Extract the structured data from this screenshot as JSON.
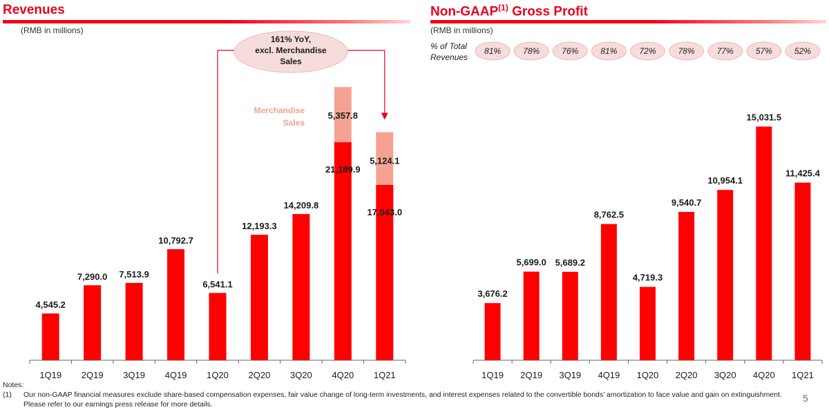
{
  "colors": {
    "bar": "#ff0000",
    "merch": "#f4a392",
    "title": "#e8001c",
    "callout_fill": "#f7dcdc",
    "callout_arrow": "#e8001c"
  },
  "left": {
    "title": "Revenues",
    "unit": "(RMB in millions)",
    "callout": [
      "161% YoY,",
      "excl. Merchandise",
      "Sales"
    ],
    "merch_label": [
      "Merchandise",
      "Sales"
    ]
  },
  "right": {
    "title": "Non-GAAP",
    "title_sup": "(1)",
    "title_suffix": " Gross Profit",
    "unit": "(RMB in millions)",
    "pct_label": [
      "% of Total",
      "Revenues"
    ]
  },
  "notes": {
    "heading": "Notes:",
    "items": [
      {
        "num": "(1)",
        "text": "Our non-GAAP financial measures exclude share-based compensation expenses, fair value change of long-term investments, and interest expenses related to the convertible bonds’ amortization to face value and gain on extinguishment. Please refer to our earnings press release for more details."
      }
    ]
  },
  "page_number": "5",
  "chart_data": [
    {
      "type": "bar",
      "stacked": true,
      "title": "Revenues",
      "categories": [
        "1Q19",
        "2Q19",
        "3Q19",
        "4Q19",
        "1Q20",
        "2Q20",
        "3Q20",
        "4Q20",
        "1Q21"
      ],
      "series": [
        {
          "values": [
            4545.2,
            7290.0,
            7513.9,
            10792.7,
            6541.1,
            12193.3,
            14209.8,
            21189.9,
            17043.0
          ],
          "labels": [
            "4,545.2",
            "7,290.0",
            "7,513.9",
            "10,792.7",
            "6,541.1",
            "12,193.3",
            "14,209.8",
            "21,189.9",
            "17,043.0"
          ]
        },
        {
          "name": "Merchandise Sales",
          "values": [
            null,
            null,
            null,
            null,
            null,
            null,
            null,
            5357.8,
            5124.1
          ],
          "labels": [
            "",
            "",
            "",
            "",
            "",
            "",
            "",
            "5,357.8",
            "5,124.1"
          ]
        }
      ],
      "ylim": [
        0,
        27500
      ],
      "grid": false
    },
    {
      "type": "bar",
      "title": "Non-GAAP(1) Gross Profit",
      "categories": [
        "1Q19",
        "2Q19",
        "3Q19",
        "4Q19",
        "1Q20",
        "2Q20",
        "3Q20",
        "4Q20",
        "1Q21"
      ],
      "values": [
        3676.2,
        5699.0,
        5689.2,
        8762.5,
        4719.3,
        9540.7,
        10954.1,
        15031.5,
        11425.4
      ],
      "labels": [
        "3,676.2",
        "5,699.0",
        "5,689.2",
        "8,762.5",
        "4,719.3",
        "9,540.7",
        "10,954.1",
        "15,031.5",
        "11,425.4"
      ],
      "pct_of_total_revenues": [
        "81%",
        "78%",
        "76%",
        "81%",
        "72%",
        "78%",
        "77%",
        "57%",
        "52%"
      ],
      "ylim": [
        0,
        18200
      ],
      "grid": false
    }
  ]
}
